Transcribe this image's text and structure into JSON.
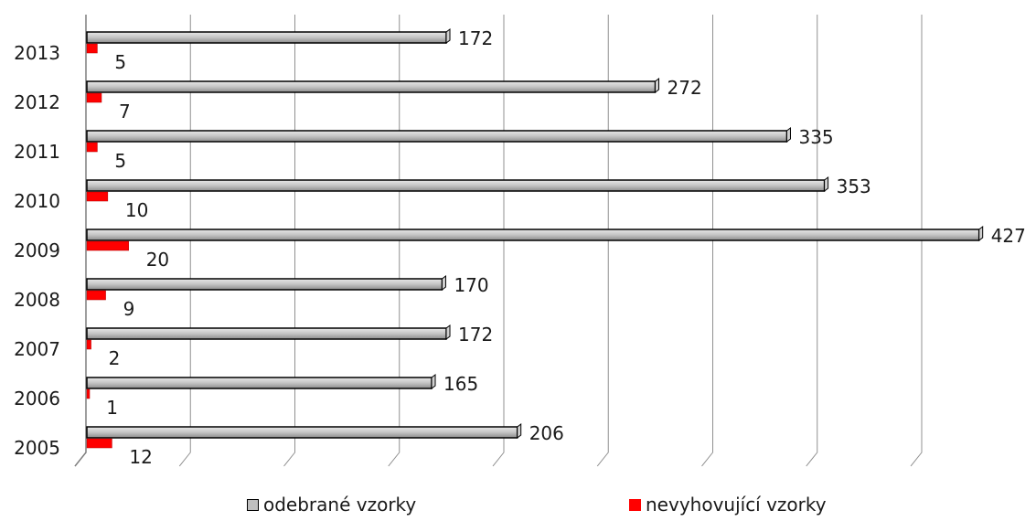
{
  "chart_data": {
    "type": "bar",
    "orientation": "horizontal",
    "categories": [
      "2005",
      "2006",
      "2007",
      "2008",
      "2009",
      "2010",
      "2011",
      "2012",
      "2013"
    ],
    "series": [
      {
        "name": "odebrané vzorky",
        "color": "#bfbfbf",
        "values": [
          206,
          165,
          172,
          170,
          427,
          353,
          335,
          272,
          172
        ]
      },
      {
        "name": "nevyhovující vzorky",
        "color": "#ff0000",
        "values": [
          12,
          1,
          2,
          9,
          20,
          10,
          5,
          7,
          5
        ]
      }
    ],
    "xlim": [
      0,
      450
    ],
    "grid": true,
    "legend": "bottom"
  }
}
